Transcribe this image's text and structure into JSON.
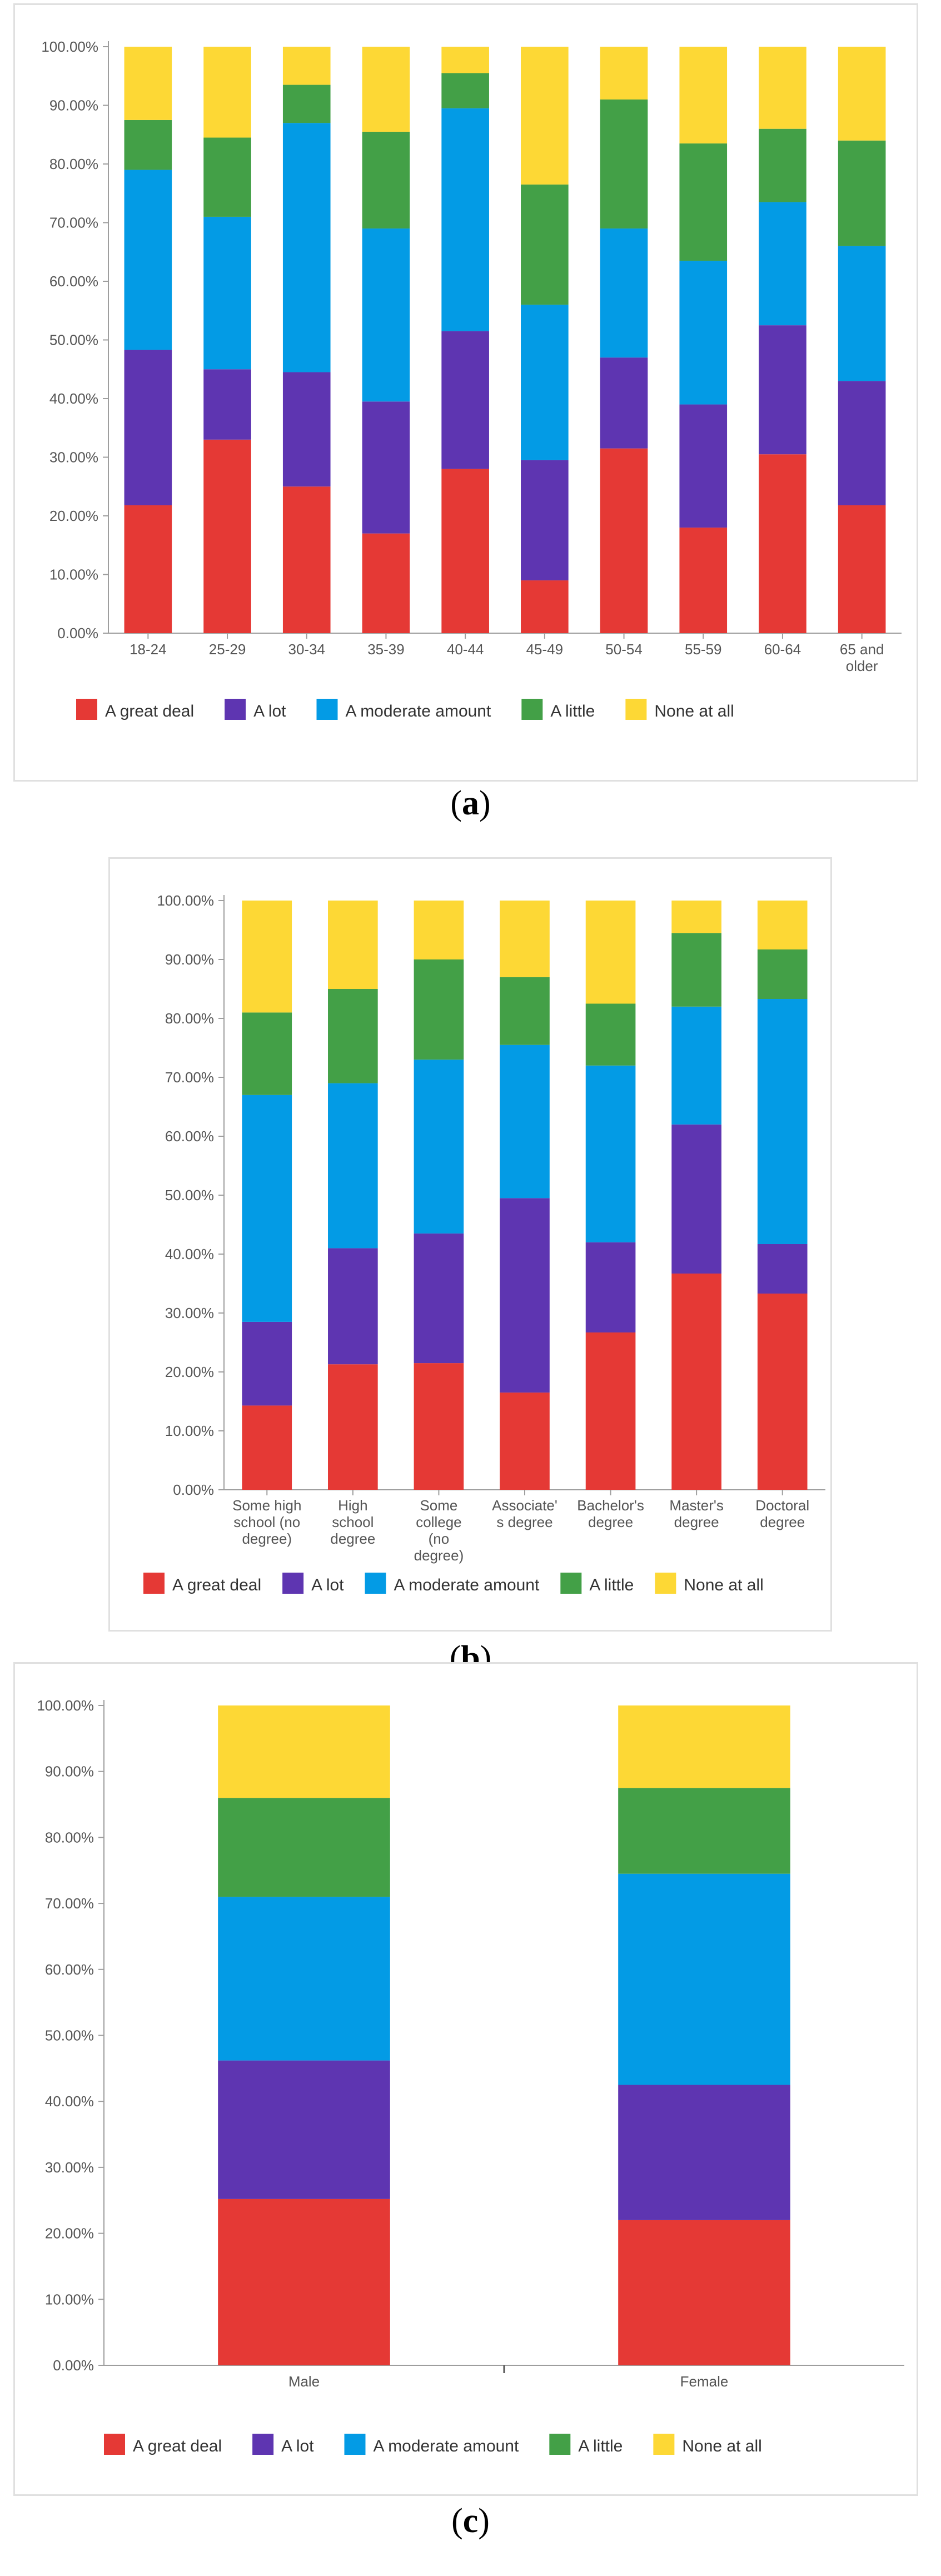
{
  "chart_data": [
    {
      "type": "bar",
      "stacked": true,
      "panel_label": "a",
      "categories": [
        [
          "18-24"
        ],
        [
          "25-29"
        ],
        [
          "30-34"
        ],
        [
          "35-39"
        ],
        [
          "40-44"
        ],
        [
          "45-49"
        ],
        [
          "50-54"
        ],
        [
          "55-59"
        ],
        [
          "60-64"
        ],
        [
          "65 and",
          "older"
        ]
      ],
      "series": [
        {
          "name": "A great deal",
          "values": [
            21.8,
            33.0,
            25.0,
            17.0,
            28.0,
            9.0,
            31.5,
            18.0,
            30.5,
            21.8
          ]
        },
        {
          "name": "A lot",
          "values": [
            26.5,
            12.0,
            19.5,
            22.5,
            23.5,
            20.5,
            15.5,
            21.0,
            22.0,
            21.2
          ]
        },
        {
          "name": "A moderate amount",
          "values": [
            30.7,
            26.0,
            42.5,
            29.5,
            38.0,
            26.5,
            22.0,
            24.5,
            21.0,
            23.0
          ]
        },
        {
          "name": "A little",
          "values": [
            8.5,
            13.5,
            6.5,
            16.5,
            6.0,
            20.5,
            22.0,
            20.0,
            12.5,
            18.0
          ]
        },
        {
          "name": "None at all",
          "values": [
            12.5,
            15.5,
            6.5,
            14.5,
            4.5,
            23.5,
            9.0,
            16.5,
            14.0,
            16.0
          ]
        }
      ],
      "ylim": [
        0,
        100
      ],
      "yticks": [
        "0.00%",
        "10.00%",
        "20.00%",
        "30.00%",
        "40.00%",
        "50.00%",
        "60.00%",
        "70.00%",
        "80.00%",
        "90.00%",
        "100.00%"
      ],
      "legend": "bottom"
    },
    {
      "type": "bar",
      "stacked": true,
      "panel_label": "b",
      "categories": [
        [
          "Some high",
          "school (no",
          "degree)"
        ],
        [
          "High",
          "school",
          "degree"
        ],
        [
          "Some",
          "college",
          "(no",
          "degree)"
        ],
        [
          "Associate'",
          "s degree"
        ],
        [
          "Bachelor's",
          "degree"
        ],
        [
          "Master's",
          "degree"
        ],
        [
          "Doctoral",
          "degree"
        ]
      ],
      "series": [
        {
          "name": "A great deal",
          "values": [
            14.3,
            21.3,
            21.5,
            16.5,
            26.7,
            36.7,
            33.3
          ]
        },
        {
          "name": "A lot",
          "values": [
            14.2,
            19.7,
            22.0,
            33.0,
            15.3,
            25.3,
            8.4
          ]
        },
        {
          "name": "A moderate amount",
          "values": [
            38.5,
            28.0,
            29.5,
            26.0,
            30.0,
            20.0,
            41.6
          ]
        },
        {
          "name": "A little",
          "values": [
            14.0,
            16.0,
            17.0,
            11.5,
            10.5,
            12.5,
            8.4
          ]
        },
        {
          "name": "None at all",
          "values": [
            19.0,
            15.0,
            10.0,
            13.0,
            17.5,
            5.5,
            8.3
          ]
        }
      ],
      "ylim": [
        0,
        100
      ],
      "yticks": [
        "0.00%",
        "10.00%",
        "20.00%",
        "30.00%",
        "40.00%",
        "50.00%",
        "60.00%",
        "70.00%",
        "80.00%",
        "90.00%",
        "100.00%"
      ],
      "legend": "bottom"
    },
    {
      "type": "bar",
      "stacked": true,
      "panel_label": "c",
      "categories": [
        [
          "Male"
        ],
        [
          "Female"
        ]
      ],
      "series": [
        {
          "name": "A great deal",
          "values": [
            25.2,
            22.0
          ]
        },
        {
          "name": "A lot",
          "values": [
            21.0,
            20.5
          ]
        },
        {
          "name": "A moderate amount",
          "values": [
            24.8,
            32.0
          ]
        },
        {
          "name": "A little",
          "values": [
            15.0,
            13.0
          ]
        },
        {
          "name": "None at all",
          "values": [
            14.0,
            12.5
          ]
        }
      ],
      "ylim": [
        0,
        100
      ],
      "yticks": [
        "0.00%",
        "10.00%",
        "20.00%",
        "30.00%",
        "40.00%",
        "50.00%",
        "60.00%",
        "70.00%",
        "80.00%",
        "90.00%",
        "100.00%"
      ],
      "legend": "bottom"
    }
  ],
  "colors": {
    "A great deal": "#e53935",
    "A lot": "#5e35b1",
    "A moderate amount": "#039be5",
    "A little": "#43a047",
    "None at all": "#fdd835"
  },
  "captions": {
    "a": "a",
    "b": "b",
    "c": "c"
  }
}
